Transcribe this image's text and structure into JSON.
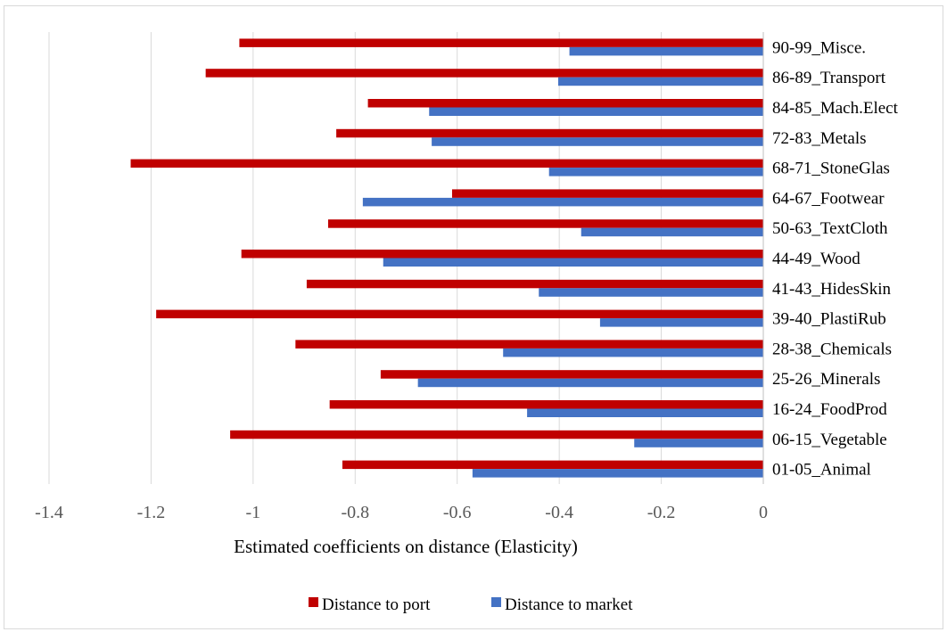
{
  "chart_data": {
    "type": "bar",
    "orientation": "horizontal",
    "categories": [
      "01-05_Animal",
      "06-15_Vegetable",
      "16-24_FoodProd",
      "25-26_Minerals",
      "28-38_Chemicals",
      "39-40_PlastiRub",
      "41-43_HidesSkin",
      "44-49_Wood",
      "50-63_TextCloth",
      "64-67_Footwear",
      "68-71_StoneGlas",
      "72-83_Metals",
      "84-85_Mach.Elect",
      "86-89_Transport",
      "90-99_Misce."
    ],
    "series": [
      {
        "name": "Distance to port",
        "color": "#c00000",
        "values": [
          -0.825,
          -1.045,
          -0.85,
          -0.75,
          -0.917,
          -1.19,
          -0.895,
          -1.023,
          -0.853,
          -0.61,
          -1.24,
          -0.837,
          -0.775,
          -1.093,
          -1.027
        ]
      },
      {
        "name": "Distance to market",
        "color": "#4472c4",
        "values": [
          -0.57,
          -0.253,
          -0.463,
          -0.677,
          -0.51,
          -0.32,
          -0.44,
          -0.745,
          -0.357,
          -0.785,
          -0.42,
          -0.65,
          -0.655,
          -0.402,
          -0.38
        ]
      }
    ],
    "xlim": [
      -1.4,
      0
    ],
    "xticks": [
      "-1.4",
      "-1.2",
      "-1",
      "-0.8",
      "-0.6",
      "-0.4",
      "-0.2",
      "0"
    ],
    "xtick_values": [
      -1.4,
      -1.2,
      -1.0,
      -0.8,
      -0.6,
      -0.4,
      -0.2,
      0
    ],
    "xlabel": "Estimated coefficients on distance (Elasticity)",
    "ylabel": "",
    "title": "",
    "grid": "vertical",
    "legend": "bottom"
  }
}
